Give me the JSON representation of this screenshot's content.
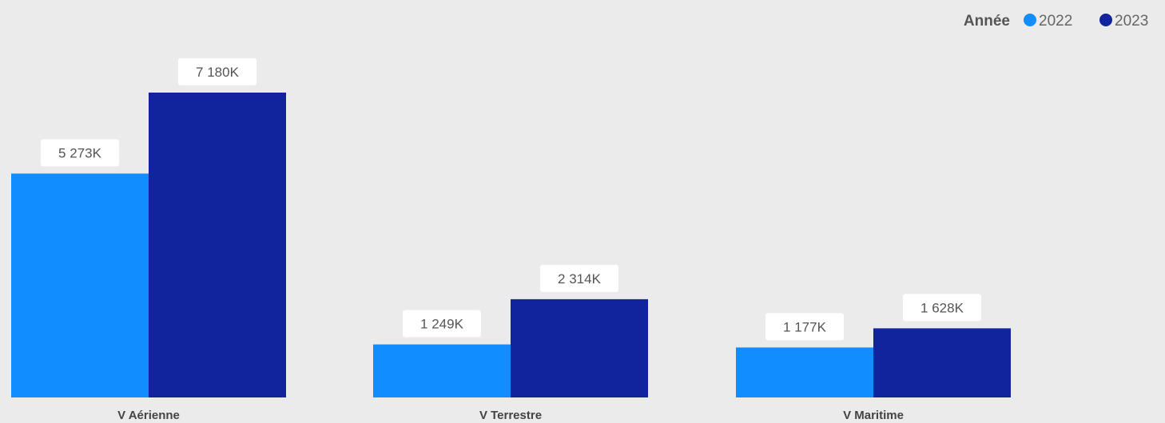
{
  "legend": {
    "title": "Année"
  },
  "colors": {
    "series_2022": "#118dff",
    "series_2023": "#12239e",
    "label_bg": "#ffffff"
  },
  "chart_data": {
    "type": "bar",
    "categories": [
      "V Aérienne",
      "V Terrestre",
      "V Maritime"
    ],
    "series": [
      {
        "name": "2022",
        "values": [
          5273,
          1249,
          1177
        ],
        "labels": [
          "5 273K",
          "1 249K",
          "1 177K"
        ]
      },
      {
        "name": "2023",
        "values": [
          7180,
          2314,
          1628
        ],
        "labels": [
          "7 180K",
          "2 314K",
          "1 628K"
        ]
      }
    ],
    "unit": "K",
    "ylim": [
      0,
      7180
    ],
    "grid": false,
    "legend_position": "top-right",
    "data_labels": true
  }
}
